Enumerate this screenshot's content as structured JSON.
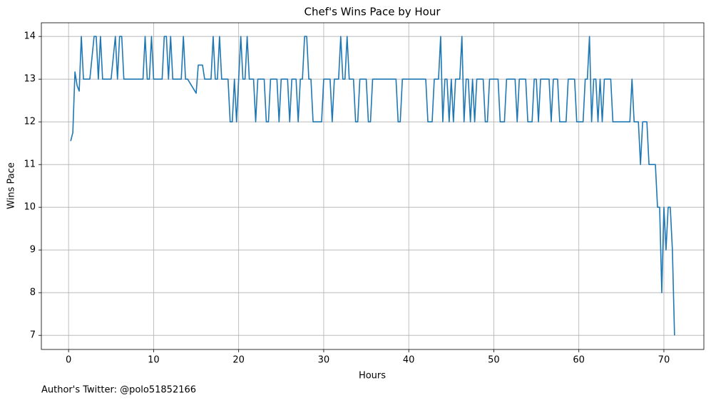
{
  "chart_data": {
    "type": "line",
    "title": "Chef's Wins Pace by Hour",
    "xlabel": "Hours",
    "ylabel": "Wins Pace",
    "annotation": "Author's Twitter: @polo51852166",
    "color": "#1f77b4",
    "grid": true,
    "xlim": [
      -3.2,
      74.7
    ],
    "ylim": [
      6.67,
      14.32
    ],
    "xticks": [
      0,
      10,
      20,
      30,
      40,
      50,
      60,
      70
    ],
    "yticks": [
      7,
      8,
      9,
      10,
      11,
      12,
      13,
      14
    ],
    "x": [
      0.25,
      0.5,
      0.75,
      1.0,
      1.25,
      1.5,
      1.75,
      2,
      2.5,
      3,
      3.25,
      3.5,
      3.75,
      4,
      5,
      5.5,
      5.75,
      6,
      6.25,
      6.5,
      8.75,
      9,
      9.25,
      9.5,
      9.75,
      10,
      11,
      11.25,
      11.5,
      11.75,
      12,
      12.25,
      13.25,
      13.5,
      13.75,
      14,
      15,
      15.25,
      15.75,
      16,
      16.75,
      17,
      17.25,
      17.5,
      17.75,
      18,
      18.75,
      19,
      19.25,
      19.5,
      19.75,
      20,
      20.25,
      20.5,
      20.75,
      21,
      21.25,
      21.75,
      22,
      22.25,
      23,
      23.25,
      23.5,
      23.75,
      24.5,
      24.75,
      25,
      25.75,
      26,
      26.25,
      26.75,
      27,
      27.25,
      27.5,
      27.75,
      28,
      28.25,
      28.5,
      28.75,
      29.75,
      30,
      30.75,
      31,
      31.25,
      31.75,
      32,
      32.25,
      32.5,
      32.75,
      33,
      33.5,
      33.75,
      34,
      34.25,
      35,
      35.25,
      35.5,
      35.75,
      38.5,
      38.75,
      39,
      39.25,
      42,
      42.25,
      42.75,
      43,
      43.5,
      43.75,
      44,
      44.25,
      44.5,
      44.75,
      45,
      45.25,
      45.5,
      46,
      46.25,
      46.5,
      46.75,
      47,
      47.25,
      47.5,
      47.75,
      48,
      48.75,
      49,
      49.25,
      49.5,
      50.5,
      50.75,
      51.25,
      51.5,
      52.5,
      52.75,
      53,
      53.75,
      54,
      54.5,
      54.75,
      55,
      55.25,
      55.5,
      56.5,
      56.75,
      57,
      57.5,
      57.75,
      58.5,
      58.75,
      59.5,
      59.75,
      60.5,
      60.75,
      61,
      61.25,
      61.5,
      61.75,
      62,
      62.25,
      62.5,
      62.75,
      63,
      63.75,
      64,
      66,
      66.25,
      66.5,
      67,
      67.25,
      67.5,
      68,
      68.25,
      69,
      69.25,
      69.5,
      69.75,
      70,
      70.25,
      70.5,
      70.75,
      71,
      71.25
    ],
    "values": [
      11.55,
      11.75,
      13.17,
      12.85,
      12.72,
      14,
      13,
      13,
      13,
      14,
      14,
      13,
      14,
      13,
      13,
      14,
      13,
      14,
      14,
      13,
      13,
      14,
      13,
      13,
      14,
      13,
      13,
      14,
      14,
      13,
      14,
      13,
      13,
      14,
      13,
      13,
      12.67,
      13.33,
      13.33,
      13,
      13,
      14,
      13,
      13,
      14,
      13,
      13,
      12,
      12,
      13,
      12,
      13,
      14,
      13,
      13,
      14,
      13,
      13,
      12,
      13,
      13,
      12,
      12,
      13,
      13,
      12,
      13,
      13,
      12,
      13,
      13,
      12,
      13,
      13,
      14,
      14,
      13,
      13,
      12,
      12,
      13,
      13,
      12,
      13,
      13,
      14,
      13,
      13,
      14,
      13,
      13,
      12,
      12,
      13,
      13,
      12,
      12,
      13,
      13,
      12,
      12,
      13,
      13,
      12,
      12,
      13,
      13,
      14,
      12,
      13,
      13,
      12,
      13,
      12,
      13,
      13,
      14,
      12,
      13,
      13,
      12,
      13,
      12,
      13,
      13,
      12,
      12,
      13,
      13,
      12,
      12,
      13,
      13,
      12,
      13,
      13,
      12,
      12,
      13,
      13,
      12,
      13,
      13,
      12,
      13,
      13,
      12,
      12,
      13,
      13,
      12,
      12,
      13,
      13,
      14,
      12,
      13,
      13,
      12,
      13,
      12,
      13,
      13,
      12,
      12,
      13,
      12,
      12,
      11,
      12,
      12,
      11,
      11,
      10,
      10,
      8,
      10,
      9,
      10,
      10,
      9,
      7
    ]
  }
}
